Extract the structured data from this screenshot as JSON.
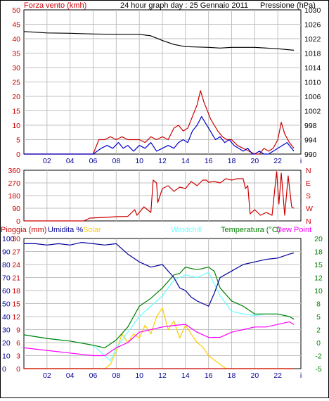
{
  "colors": {
    "red": "#cc0000",
    "blue": "#0000cc",
    "navy": "#000099",
    "black": "#000000",
    "cyan": "#66ffff",
    "green": "#008000",
    "yellow": "#ffcc00",
    "magenta": "#ff00ff",
    "grid": "#c0c0c0"
  },
  "chart_data": [
    {
      "type": "line",
      "title": "24 hour graph day : 25 Gennaio 2011",
      "left_axis_label": "Forza vento (kmh)",
      "right_axis_label": "Pressione (hPa)",
      "ylim": [
        0,
        50
      ],
      "y2lim": [
        990,
        1030
      ],
      "left_ticks": [
        "0",
        "5",
        "10",
        "15",
        "20",
        "25",
        "30",
        "35",
        "40",
        "45",
        "50"
      ],
      "right_ticks": [
        "990",
        "994",
        "998",
        "1002",
        "1006",
        "1010",
        "1014",
        "1018",
        "1022",
        "1026",
        "1030"
      ],
      "x_ticks": [
        "02",
        "04",
        "06",
        "08",
        "10",
        "12",
        "14",
        "16",
        "18",
        "20",
        "22",
        "i"
      ],
      "series": [
        {
          "color_key": "black",
          "axis": "right",
          "x": [
            0,
            2,
            4,
            6,
            8,
            10,
            11,
            12,
            13,
            14,
            15,
            16,
            17,
            18,
            20,
            22,
            23.4
          ],
          "values": [
            1024,
            1023.6,
            1023.5,
            1023.3,
            1023.2,
            1023.2,
            1022.8,
            1021.5,
            1020.4,
            1019.8,
            1019.7,
            1019.6,
            1019.4,
            1019.6,
            1019.6,
            1019.2,
            1018.8
          ]
        },
        {
          "color_key": "blue",
          "axis": "left",
          "x": [
            0,
            6,
            6.7,
            7.2,
            7.7,
            8.2,
            8.6,
            9,
            9.5,
            10,
            10.5,
            11,
            11.5,
            12,
            12.5,
            13,
            13.4,
            13.8,
            14.2,
            14.6,
            15,
            15.4,
            15.7,
            16,
            16.3,
            16.6,
            17,
            17.4,
            17.8,
            18.2,
            18.6,
            19,
            19.4,
            19.8,
            20,
            20.4,
            20.8,
            21.2,
            21.6,
            22,
            22.4,
            22.8,
            23.4
          ],
          "values": [
            0,
            0,
            2,
            3,
            2,
            4,
            2,
            3,
            1,
            3,
            2,
            4,
            1,
            2,
            3,
            2,
            4,
            5,
            4,
            8,
            10,
            13,
            11,
            9,
            7,
            5,
            6,
            4,
            5,
            3,
            2,
            1,
            2,
            0,
            0,
            1,
            0,
            0,
            1,
            2,
            3,
            4,
            1
          ]
        },
        {
          "color_key": "red",
          "axis": "left",
          "x": [
            0,
            6,
            6.5,
            7,
            7.5,
            8,
            8.5,
            9,
            9.5,
            10,
            10.5,
            11,
            11.5,
            12,
            12.5,
            13,
            13.4,
            13.8,
            14.2,
            14.6,
            15,
            15.3,
            15.6,
            15.9,
            16.2,
            16.5,
            16.8,
            17.2,
            17.6,
            18,
            18.5,
            19,
            19.5,
            20,
            20.4,
            20.8,
            21.2,
            21.6,
            22,
            22.3,
            22.6,
            23,
            23.4
          ],
          "values": [
            0,
            0,
            5,
            5,
            6,
            5,
            6,
            5,
            5,
            5,
            4,
            6,
            5,
            6,
            5,
            9,
            10,
            8,
            9,
            13,
            17,
            22,
            18,
            15,
            12,
            10,
            8,
            6,
            5,
            5,
            3,
            2,
            1,
            0,
            0,
            2,
            1,
            2,
            5,
            11,
            7,
            4,
            2
          ]
        }
      ]
    },
    {
      "type": "line",
      "left_ticks": [
        "0",
        "90",
        "180",
        "270",
        "360"
      ],
      "right_labels": [
        "N",
        "W",
        "S",
        "E",
        "N"
      ],
      "ylim": [
        0,
        360
      ],
      "x_ticks": [
        "02",
        "04",
        "06",
        "08",
        "10",
        "12",
        "14",
        "16",
        "18",
        "20",
        "22",
        "i"
      ],
      "series": [
        {
          "color_key": "red",
          "axis": "left",
          "x": [
            0,
            5.2,
            5.7,
            7,
            8,
            9,
            9.6,
            9.8,
            10.4,
            11,
            11.2,
            11.5,
            11.6,
            12,
            12.5,
            13,
            13.5,
            14,
            14.5,
            15,
            15.5,
            15.8,
            16,
            16.5,
            17,
            17.5,
            18,
            18.5,
            19,
            19.2,
            19.4,
            19.6,
            20,
            20.5,
            21,
            21.5,
            21.9,
            22.1,
            22.3,
            22.6,
            22.9,
            23.2,
            23.4
          ],
          "values": [
            0,
            0,
            20,
            25,
            30,
            32,
            80,
            40,
            100,
            60,
            290,
            270,
            130,
            230,
            250,
            210,
            240,
            230,
            280,
            250,
            290,
            290,
            275,
            280,
            270,
            300,
            290,
            300,
            300,
            230,
            250,
            50,
            80,
            40,
            60,
            40,
            350,
            120,
            340,
            40,
            320,
            100,
            90
          ]
        }
      ]
    },
    {
      "type": "line",
      "left_axis_labels": [
        "Pioggia (mm)",
        "Umidita %",
        "Solar",
        "Windchill"
      ],
      "right_axis_labels": [
        "Temperatura (°C)",
        "Dew Point"
      ],
      "rain_ticks": [
        "0",
        "3",
        "6",
        "9",
        "12",
        "15",
        "18",
        "21",
        "24",
        "27",
        "30"
      ],
      "humidity_ticks": [
        "0",
        "10",
        "20",
        "30",
        "40",
        "50",
        "60",
        "70",
        "80",
        "90",
        "100"
      ],
      "temperature_ticks": [
        "-5",
        "-2",
        "0",
        "2",
        "5",
        "8",
        "10",
        "12",
        "15",
        "18",
        "20"
      ],
      "ylim": [
        0,
        100
      ],
      "temperature_range": [
        -5,
        20
      ],
      "x_ticks": [
        "02",
        "04",
        "06",
        "08",
        "10",
        "12",
        "14",
        "16",
        "18",
        "20",
        "22",
        "i"
      ],
      "series": [
        {
          "color_key": "navy",
          "axis": "humidity",
          "x": [
            0,
            1,
            2,
            3,
            4,
            5,
            6,
            7,
            8,
            9,
            10,
            11,
            12,
            13,
            13.5,
            14,
            14.5,
            15,
            15.5,
            16,
            16.5,
            17,
            18,
            19,
            20,
            21,
            22,
            23,
            23.4
          ],
          "values": [
            96,
            96,
            95,
            96,
            95,
            97,
            96,
            95,
            96,
            88,
            82,
            78,
            80,
            70,
            62,
            60,
            55,
            52,
            50,
            48,
            58,
            70,
            75,
            80,
            82,
            84,
            85,
            88,
            89
          ]
        },
        {
          "color_key": "green",
          "axis": "temperature",
          "x": [
            0,
            2,
            4,
            6,
            7,
            8,
            9,
            10,
            11,
            12,
            13,
            13.5,
            14,
            15,
            16,
            16.5,
            17,
            18,
            19,
            20,
            21,
            22,
            23,
            23.4
          ],
          "values": [
            1.5,
            0.8,
            0.3,
            -0.5,
            -1,
            0.5,
            3,
            7,
            8.5,
            10.5,
            13,
            13.3,
            14.5,
            14,
            14.5,
            13.7,
            10.5,
            8,
            7,
            5.5,
            5.5,
            5.5,
            5,
            4.5
          ]
        },
        {
          "color_key": "cyan",
          "axis": "temperature",
          "x": [
            0,
            2,
            4,
            6,
            7,
            7.5,
            8,
            9,
            10,
            11,
            12,
            13,
            14,
            15,
            16,
            17,
            18,
            19,
            20,
            21,
            22,
            23,
            23.4
          ],
          "values": [
            1.5,
            0.8,
            0.3,
            -0.5,
            -2.5,
            -3.5,
            -1,
            2,
            5,
            7,
            9,
            12,
            13,
            12.5,
            13.5,
            9,
            6,
            5.5,
            5.2,
            5.5,
            5.5,
            5,
            4.5
          ]
        },
        {
          "color_key": "magenta",
          "axis": "temperature",
          "x": [
            0,
            2,
            4,
            6,
            7,
            8,
            9,
            10,
            11,
            12,
            13,
            14,
            15,
            16,
            17,
            18,
            19,
            20,
            21,
            22,
            23,
            23.4
          ],
          "values": [
            -1,
            -1.5,
            -2,
            -2.5,
            -2.5,
            -1,
            0,
            2,
            2.5,
            3,
            3.3,
            3.5,
            2,
            1,
            1,
            2,
            2.5,
            3,
            3,
            3.5,
            4,
            3.5
          ]
        },
        {
          "color_key": "yellow",
          "axis": "rain",
          "x": [
            0,
            7,
            7.5,
            8,
            8.5,
            9,
            9.5,
            10,
            10.5,
            11,
            11.5,
            12,
            12.5,
            13,
            13.5,
            14,
            14.5,
            15,
            15.5,
            16,
            16.5,
            17,
            17.5,
            18,
            23.4
          ],
          "values": [
            0,
            0,
            1,
            4,
            8,
            6,
            8,
            7,
            10,
            8,
            12,
            14,
            9,
            11,
            7,
            10,
            8,
            6,
            5,
            3,
            2,
            1,
            0,
            0,
            0
          ]
        },
        {
          "color_key": "red",
          "axis": "rain",
          "x": [
            0,
            23.4
          ],
          "values": [
            0,
            0
          ]
        }
      ]
    }
  ]
}
